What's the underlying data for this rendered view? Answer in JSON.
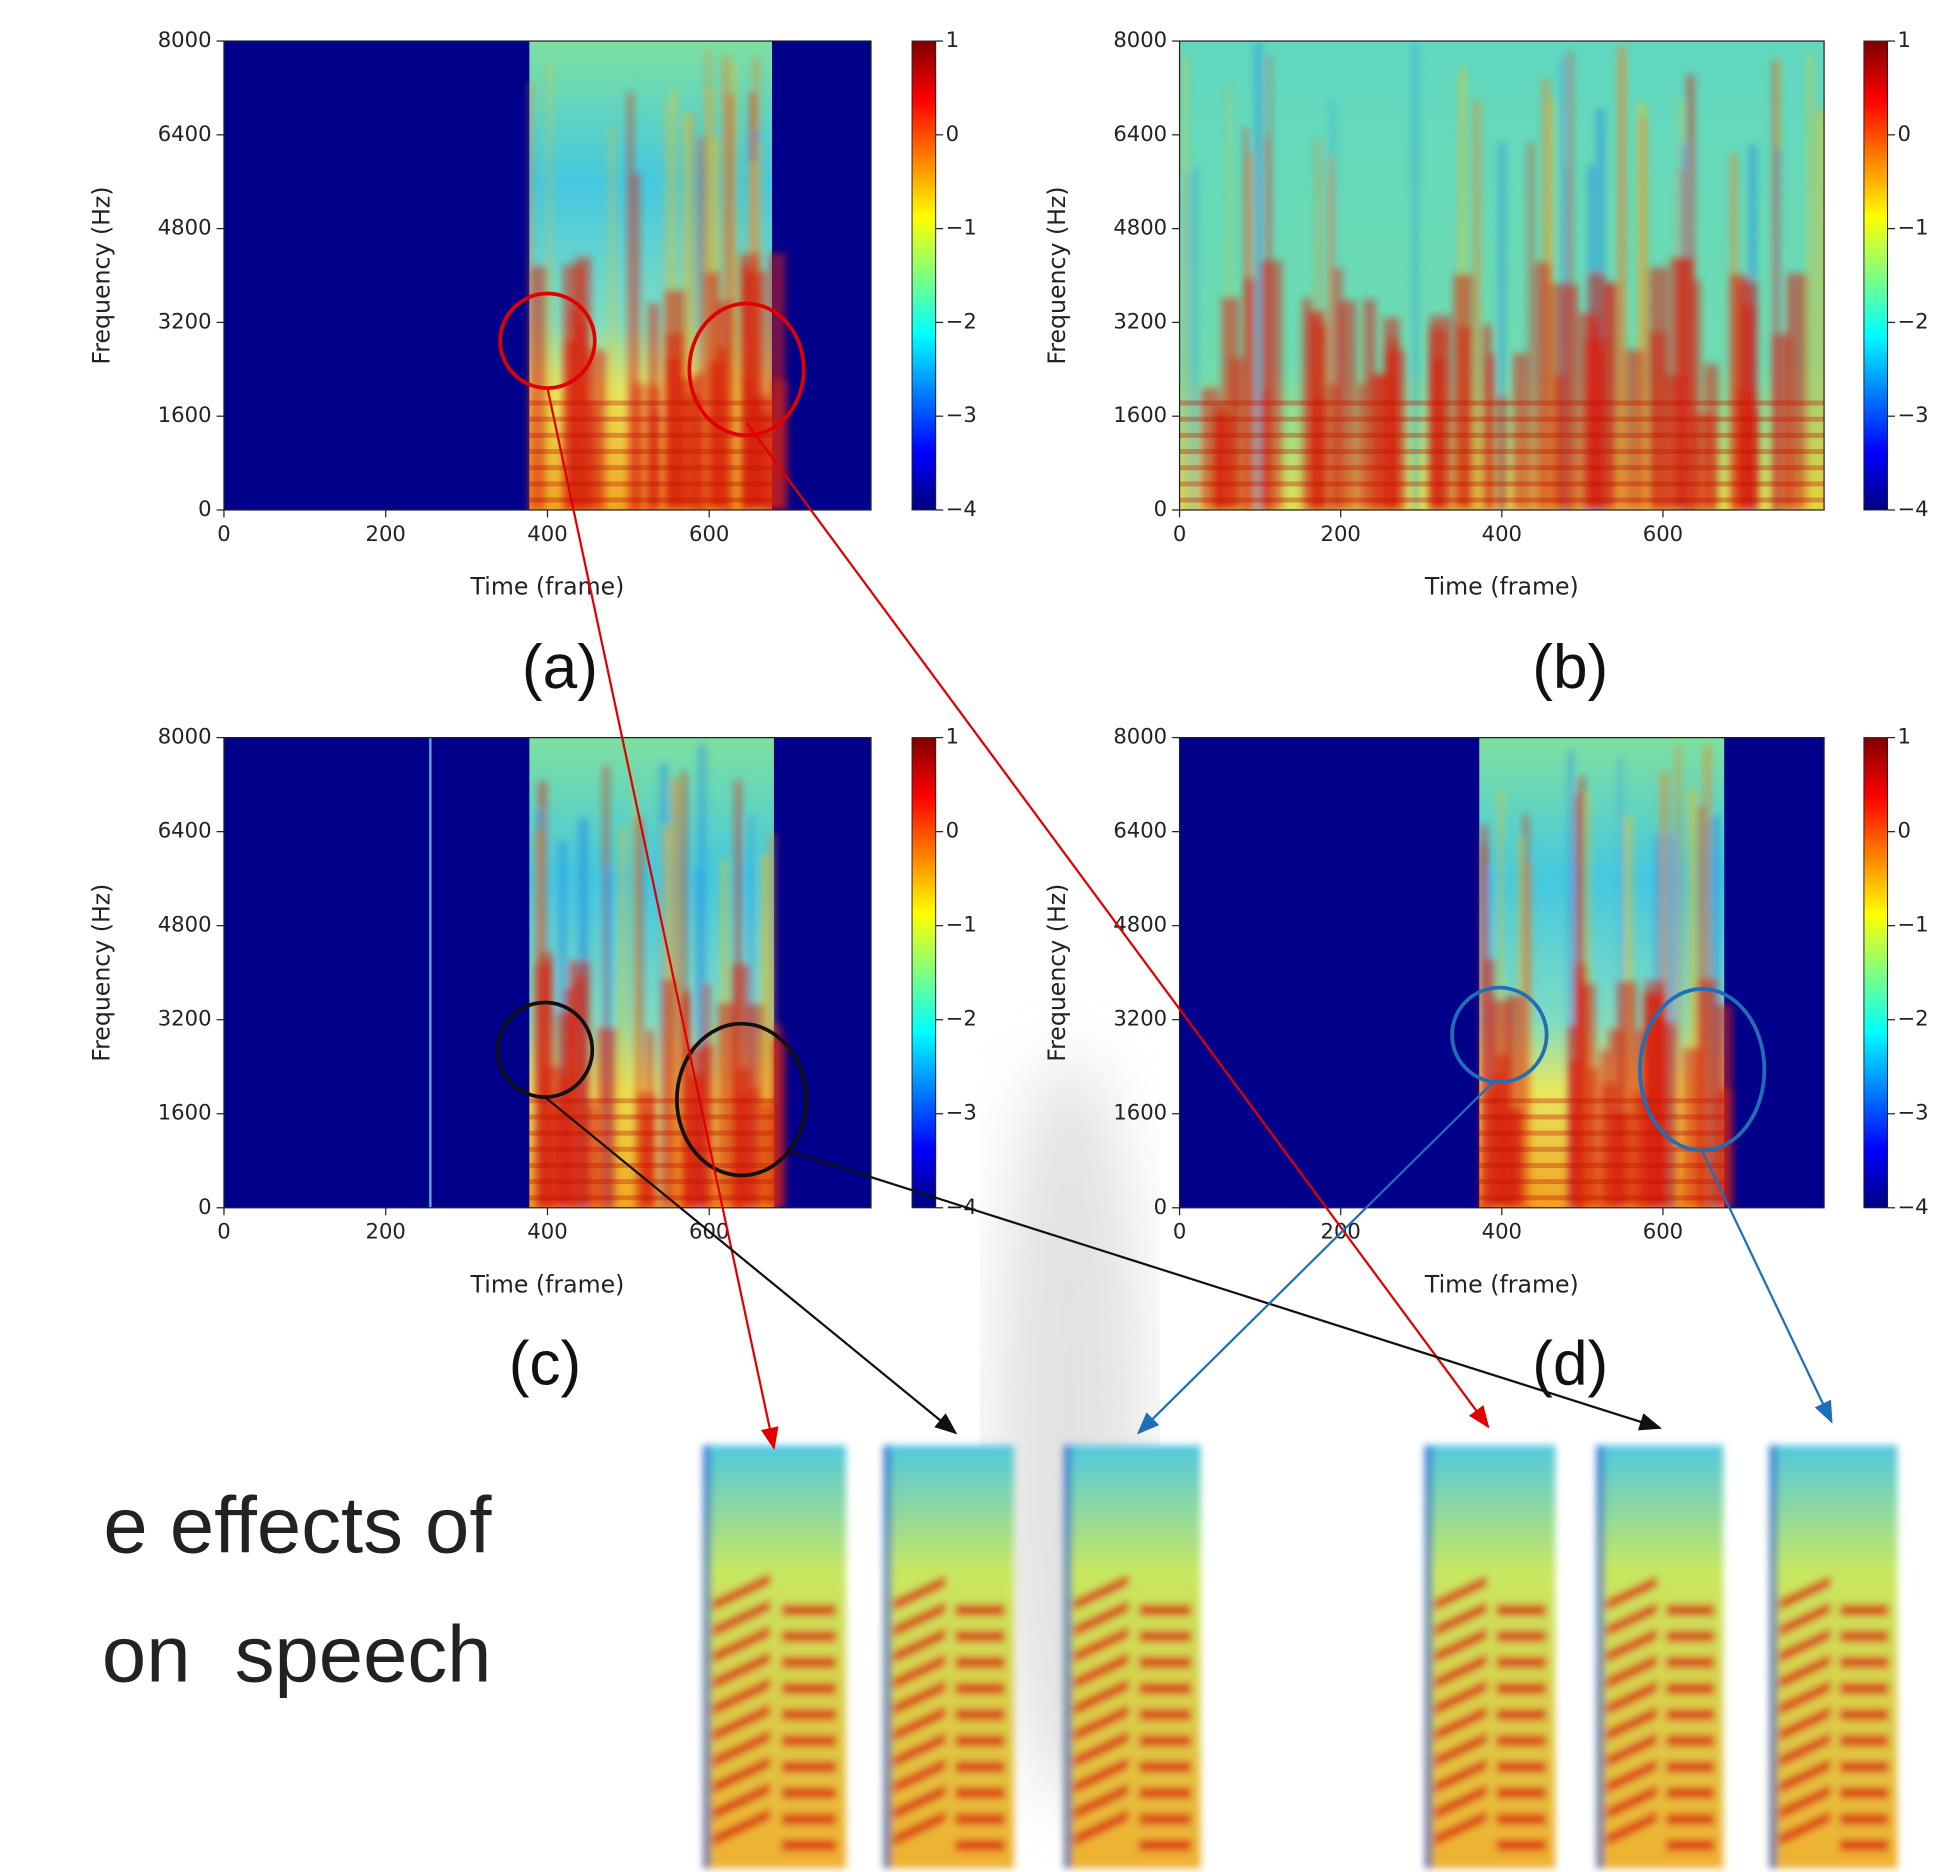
{
  "chart_data": [
    {
      "type": "spectrogram",
      "caption": "(a)",
      "xlabel": "Time (frame)",
      "ylabel": "Frequency (Hz)",
      "xlim": [
        0,
        800
      ],
      "ylim": [
        0,
        8000
      ],
      "xticks": [
        0,
        200,
        400,
        600
      ],
      "yticks": [
        0,
        1600,
        3200,
        4800,
        6400,
        8000
      ],
      "clim": [
        -4,
        1
      ],
      "cticks": [
        {
          "value": -4,
          "label": "−4"
        },
        {
          "value": -3,
          "label": "−3"
        },
        {
          "value": -2,
          "label": "−2"
        },
        {
          "value": -1,
          "label": "−1"
        },
        0,
        1
      ]
    },
    {
      "type": "spectrogram",
      "caption": "(b)",
      "xlabel": "Time (frame)",
      "ylabel": "Frequency (Hz)",
      "xlim": [
        0,
        800
      ],
      "ylim": [
        0,
        8000
      ],
      "xticks": [
        0,
        200,
        400,
        600
      ],
      "yticks": [
        0,
        1600,
        3200,
        4800,
        6400,
        8000
      ],
      "clim": [
        -4,
        1
      ],
      "cticks": [
        {
          "value": -4,
          "label": "−4"
        },
        {
          "value": -3,
          "label": "−3"
        },
        {
          "value": -2,
          "label": "−2"
        },
        {
          "value": -1,
          "label": "−1"
        },
        0,
        1
      ]
    },
    {
      "type": "spectrogram",
      "caption": "(c)",
      "xlabel": "Time (frame)",
      "ylabel": "Frequency (Hz)",
      "xlim": [
        0,
        800
      ],
      "ylim": [
        0,
        8000
      ],
      "xticks": [
        0,
        200,
        400,
        600
      ],
      "yticks": [
        0,
        1600,
        3200,
        4800,
        6400,
        8000
      ],
      "clim": [
        -4,
        1
      ],
      "cticks": [
        {
          "value": -4,
          "label": "−4"
        },
        {
          "value": -3,
          "label": "−3"
        },
        {
          "value": -2,
          "label": "−2"
        },
        {
          "value": -1,
          "label": "−1"
        },
        0,
        1
      ]
    },
    {
      "type": "spectrogram",
      "caption": "(d)",
      "xlabel": "Time (frame)",
      "ylabel": "Frequency (Hz)",
      "xlim": [
        0,
        800
      ],
      "ylim": [
        0,
        8000
      ],
      "xticks": [
        0,
        200,
        400,
        600
      ],
      "yticks": [
        0,
        1600,
        3200,
        4800,
        6400,
        8000
      ],
      "clim": [
        -4,
        1
      ],
      "cticks": [
        {
          "value": -4,
          "label": "−4"
        },
        {
          "value": -3,
          "label": "−3"
        },
        {
          "value": -2,
          "label": "−2"
        },
        {
          "value": -1,
          "label": "−1"
        },
        0,
        1
      ]
    }
  ],
  "body_text": [
    "e effects of",
    "on  speech"
  ]
}
